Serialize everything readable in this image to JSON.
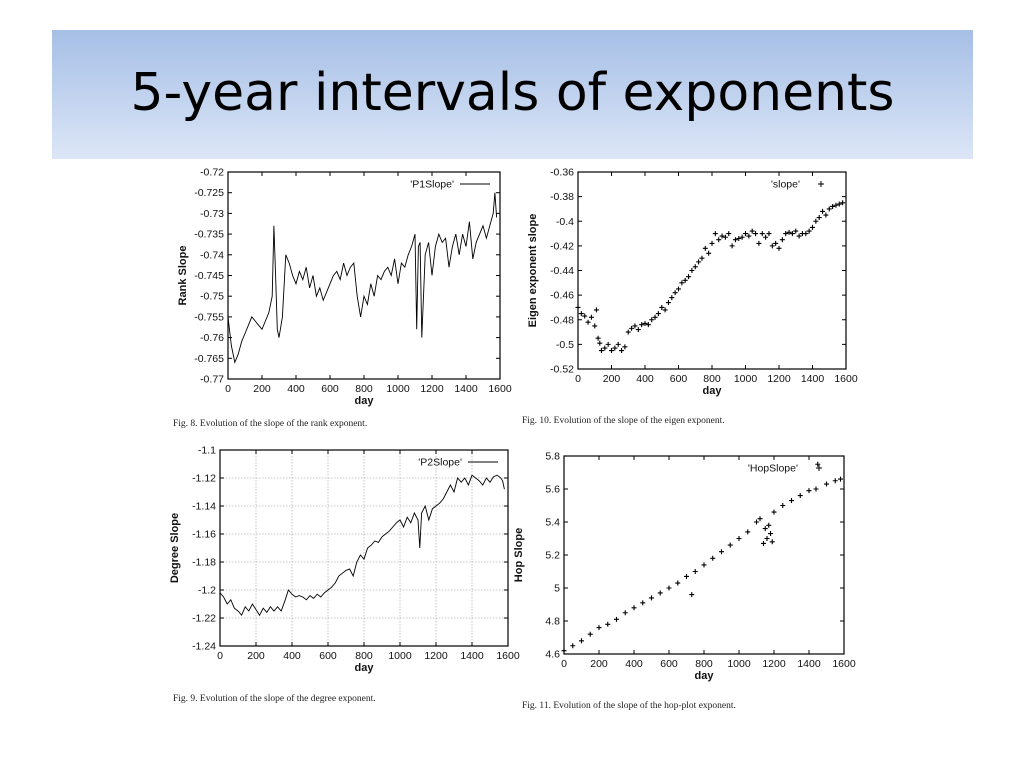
{
  "slide": {
    "title": "5-year intervals of exponents"
  },
  "chart_data": [
    {
      "type": "line",
      "legend": "'P1Slope'",
      "legend_placement": "top-right",
      "xlabel": "day",
      "ylabel": "Rank Slope",
      "xlim": [
        0,
        1600
      ],
      "ylim": [
        -0.77,
        -0.72
      ],
      "xticks": [
        0,
        200,
        400,
        600,
        800,
        1000,
        1200,
        1400,
        1600
      ],
      "xtick_labels": [
        "0",
        "200",
        "400",
        "600",
        "800",
        "1000",
        "1200",
        "1400",
        "1600"
      ],
      "yticks": [
        -0.72,
        -0.725,
        -0.73,
        -0.735,
        -0.74,
        -0.745,
        -0.75,
        -0.755,
        -0.76,
        -0.765,
        -0.77
      ],
      "ytick_labels": [
        "-0.72",
        "-0.725",
        "-0.73",
        "-0.735",
        "-0.74",
        "-0.745",
        "-0.75",
        "-0.755",
        "-0.76",
        "-0.765",
        "-0.77"
      ],
      "grid": false,
      "caption": "Fig. 8.    Evolution of the slope of the rank exponent.",
      "series": [
        {
          "marker": "line",
          "x": [
            0,
            20,
            40,
            60,
            80,
            100,
            120,
            140,
            160,
            180,
            200,
            220,
            240,
            260,
            270,
            280,
            290,
            300,
            320,
            340,
            360,
            380,
            400,
            420,
            440,
            460,
            480,
            500,
            520,
            540,
            560,
            580,
            600,
            620,
            640,
            660,
            680,
            700,
            720,
            740,
            760,
            780,
            800,
            820,
            840,
            860,
            880,
            900,
            920,
            940,
            960,
            980,
            1000,
            1020,
            1040,
            1060,
            1080,
            1100,
            1110,
            1120,
            1130,
            1140,
            1160,
            1180,
            1200,
            1220,
            1240,
            1260,
            1280,
            1300,
            1320,
            1340,
            1360,
            1380,
            1400,
            1420,
            1440,
            1460,
            1480,
            1500,
            1520,
            1540,
            1560,
            1570,
            1580
          ],
          "y": [
            -0.755,
            -0.762,
            -0.766,
            -0.764,
            -0.761,
            -0.759,
            -0.757,
            -0.755,
            -0.756,
            -0.757,
            -0.758,
            -0.756,
            -0.754,
            -0.75,
            -0.733,
            -0.745,
            -0.758,
            -0.76,
            -0.755,
            -0.74,
            -0.742,
            -0.745,
            -0.747,
            -0.744,
            -0.746,
            -0.743,
            -0.748,
            -0.745,
            -0.75,
            -0.748,
            -0.751,
            -0.749,
            -0.747,
            -0.745,
            -0.744,
            -0.746,
            -0.742,
            -0.745,
            -0.743,
            -0.742,
            -0.75,
            -0.755,
            -0.75,
            -0.752,
            -0.747,
            -0.75,
            -0.745,
            -0.746,
            -0.744,
            -0.743,
            -0.745,
            -0.741,
            -0.747,
            -0.742,
            -0.743,
            -0.74,
            -0.738,
            -0.735,
            -0.758,
            -0.738,
            -0.737,
            -0.76,
            -0.74,
            -0.737,
            -0.745,
            -0.738,
            -0.735,
            -0.737,
            -0.736,
            -0.743,
            -0.738,
            -0.735,
            -0.74,
            -0.735,
            -0.738,
            -0.732,
            -0.741,
            -0.737,
            -0.735,
            -0.733,
            -0.736,
            -0.733,
            -0.73,
            -0.725,
            -0.731
          ]
        }
      ]
    },
    {
      "type": "scatter",
      "legend": "'slope'",
      "legend_placement": "top-right",
      "xlabel": "day",
      "ylabel": "Eigen exponent slope",
      "xlim": [
        0,
        1600
      ],
      "ylim": [
        -0.52,
        -0.36
      ],
      "xticks": [
        0,
        200,
        400,
        600,
        800,
        1000,
        1200,
        1400,
        1600
      ],
      "xtick_labels": [
        "0",
        "200",
        "400",
        "600",
        "800",
        "1000",
        "1200",
        "1400",
        "1600"
      ],
      "yticks": [
        -0.36,
        -0.38,
        -0.4,
        -0.42,
        -0.44,
        -0.46,
        -0.48,
        -0.5,
        -0.52
      ],
      "ytick_labels": [
        "-0.36",
        "-0.38",
        "-0.4",
        "-0.42",
        "-0.44",
        "-0.46",
        "-0.48",
        "-0.5",
        "-0.52"
      ],
      "grid": false,
      "caption": "Fig. 10.    Evolution of the slope of the eigen exponent.",
      "series": [
        {
          "marker": "plus",
          "x": [
            0,
            20,
            40,
            60,
            80,
            100,
            110,
            120,
            130,
            140,
            160,
            180,
            200,
            220,
            240,
            260,
            280,
            300,
            320,
            340,
            360,
            380,
            400,
            420,
            440,
            460,
            480,
            500,
            520,
            540,
            560,
            580,
            600,
            620,
            640,
            660,
            680,
            700,
            720,
            740,
            760,
            780,
            800,
            820,
            840,
            860,
            880,
            900,
            920,
            940,
            960,
            980,
            1000,
            1020,
            1040,
            1060,
            1080,
            1100,
            1120,
            1140,
            1160,
            1180,
            1200,
            1220,
            1240,
            1260,
            1280,
            1300,
            1320,
            1340,
            1360,
            1380,
            1400,
            1420,
            1440,
            1460,
            1480,
            1500,
            1520,
            1540,
            1560,
            1580
          ],
          "y": [
            -0.47,
            -0.475,
            -0.477,
            -0.482,
            -0.478,
            -0.485,
            -0.472,
            -0.495,
            -0.499,
            -0.505,
            -0.503,
            -0.5,
            -0.505,
            -0.503,
            -0.5,
            -0.505,
            -0.502,
            -0.49,
            -0.487,
            -0.485,
            -0.488,
            -0.484,
            -0.483,
            -0.484,
            -0.48,
            -0.478,
            -0.475,
            -0.47,
            -0.472,
            -0.466,
            -0.462,
            -0.458,
            -0.455,
            -0.45,
            -0.448,
            -0.445,
            -0.44,
            -0.437,
            -0.433,
            -0.43,
            -0.422,
            -0.426,
            -0.418,
            -0.41,
            -0.415,
            -0.412,
            -0.413,
            -0.41,
            -0.42,
            -0.415,
            -0.414,
            -0.413,
            -0.41,
            -0.412,
            -0.408,
            -0.41,
            -0.418,
            -0.41,
            -0.413,
            -0.41,
            -0.42,
            -0.418,
            -0.422,
            -0.415,
            -0.41,
            -0.409,
            -0.41,
            -0.408,
            -0.412,
            -0.41,
            -0.41,
            -0.408,
            -0.405,
            -0.4,
            -0.397,
            -0.392,
            -0.395,
            -0.39,
            -0.388,
            -0.387,
            -0.386,
            -0.385
          ]
        }
      ]
    },
    {
      "type": "line",
      "legend": "'P2Slope'",
      "legend_placement": "top-right",
      "xlabel": "day",
      "ylabel": "Degree Slope",
      "xlim": [
        0,
        1600
      ],
      "ylim": [
        -1.24,
        -1.1
      ],
      "xticks": [
        0,
        200,
        400,
        600,
        800,
        1000,
        1200,
        1400,
        1600
      ],
      "xtick_labels": [
        "0",
        "200",
        "400",
        "600",
        "800",
        "1000",
        "1200",
        "1400",
        "1600"
      ],
      "yticks": [
        -1.1,
        -1.12,
        -1.14,
        -1.16,
        -1.18,
        -1.2,
        -1.22,
        -1.24
      ],
      "ytick_labels": [
        "-1.1",
        "-1.12",
        "-1.14",
        "-1.16",
        "-1.18",
        "-1.2",
        "-1.22",
        "-1.24"
      ],
      "grid": true,
      "caption": "Fig. 9.    Evolution of the slope of the degree exponent.",
      "series": [
        {
          "marker": "line",
          "x": [
            0,
            20,
            40,
            60,
            80,
            100,
            120,
            140,
            160,
            180,
            200,
            220,
            240,
            260,
            280,
            300,
            320,
            340,
            360,
            380,
            400,
            420,
            440,
            460,
            480,
            500,
            520,
            540,
            560,
            580,
            600,
            620,
            640,
            660,
            680,
            700,
            720,
            740,
            760,
            780,
            800,
            820,
            840,
            860,
            880,
            900,
            920,
            940,
            960,
            980,
            1000,
            1020,
            1040,
            1060,
            1080,
            1100,
            1110,
            1120,
            1140,
            1160,
            1180,
            1200,
            1220,
            1240,
            1260,
            1280,
            1300,
            1320,
            1340,
            1360,
            1380,
            1400,
            1420,
            1440,
            1460,
            1480,
            1500,
            1520,
            1540,
            1560,
            1570,
            1580
          ],
          "y": [
            -1.202,
            -1.205,
            -1.21,
            -1.207,
            -1.213,
            -1.215,
            -1.218,
            -1.212,
            -1.215,
            -1.21,
            -1.214,
            -1.218,
            -1.213,
            -1.216,
            -1.212,
            -1.215,
            -1.212,
            -1.215,
            -1.208,
            -1.2,
            -1.203,
            -1.205,
            -1.204,
            -1.205,
            -1.207,
            -1.204,
            -1.206,
            -1.203,
            -1.205,
            -1.202,
            -1.2,
            -1.198,
            -1.195,
            -1.19,
            -1.188,
            -1.186,
            -1.185,
            -1.19,
            -1.18,
            -1.175,
            -1.178,
            -1.17,
            -1.168,
            -1.165,
            -1.166,
            -1.162,
            -1.16,
            -1.158,
            -1.155,
            -1.152,
            -1.15,
            -1.155,
            -1.148,
            -1.152,
            -1.145,
            -1.15,
            -1.17,
            -1.145,
            -1.14,
            -1.15,
            -1.142,
            -1.14,
            -1.138,
            -1.135,
            -1.13,
            -1.125,
            -1.13,
            -1.12,
            -1.123,
            -1.12,
            -1.125,
            -1.118,
            -1.12,
            -1.122,
            -1.125,
            -1.12,
            -1.123,
            -1.119,
            -1.118,
            -1.12,
            -1.122,
            -1.128
          ]
        }
      ]
    },
    {
      "type": "scatter",
      "legend": "'HopSlope'",
      "legend_placement": "top-right",
      "xlabel": "day",
      "ylabel": "Hop Slope",
      "xlim": [
        0,
        1600
      ],
      "ylim": [
        4.6,
        5.8
      ],
      "xticks": [
        0,
        200,
        400,
        600,
        800,
        1000,
        1200,
        1400,
        1600
      ],
      "xtick_labels": [
        "0",
        "200",
        "400",
        "600",
        "800",
        "1000",
        "1200",
        "1400",
        "1600"
      ],
      "yticks": [
        4.6,
        4.8,
        5,
        5.2,
        5.4,
        5.6,
        5.8
      ],
      "ytick_labels": [
        "4.6",
        "4.8",
        "5",
        "5.2",
        "5.4",
        "5.6",
        "5.8"
      ],
      "grid": false,
      "caption": "Fig. 11.    Evolution of the slope of the hop-plot exponent.",
      "series": [
        {
          "marker": "plus",
          "x": [
            0,
            50,
            100,
            150,
            200,
            250,
            300,
            350,
            400,
            450,
            500,
            550,
            600,
            650,
            700,
            730,
            750,
            800,
            850,
            900,
            950,
            1000,
            1050,
            1100,
            1120,
            1140,
            1150,
            1160,
            1170,
            1180,
            1190,
            1200,
            1250,
            1300,
            1350,
            1400,
            1440,
            1450,
            1500,
            1550,
            1580
          ],
          "y": [
            4.62,
            4.65,
            4.68,
            4.72,
            4.76,
            4.78,
            4.81,
            4.85,
            4.88,
            4.91,
            4.94,
            4.97,
            5.0,
            5.03,
            5.07,
            4.96,
            5.1,
            5.14,
            5.18,
            5.22,
            5.26,
            5.3,
            5.34,
            5.4,
            5.42,
            5.27,
            5.36,
            5.3,
            5.38,
            5.33,
            5.28,
            5.46,
            5.5,
            5.53,
            5.56,
            5.59,
            5.6,
            5.75,
            5.63,
            5.65,
            5.66
          ]
        }
      ]
    }
  ]
}
